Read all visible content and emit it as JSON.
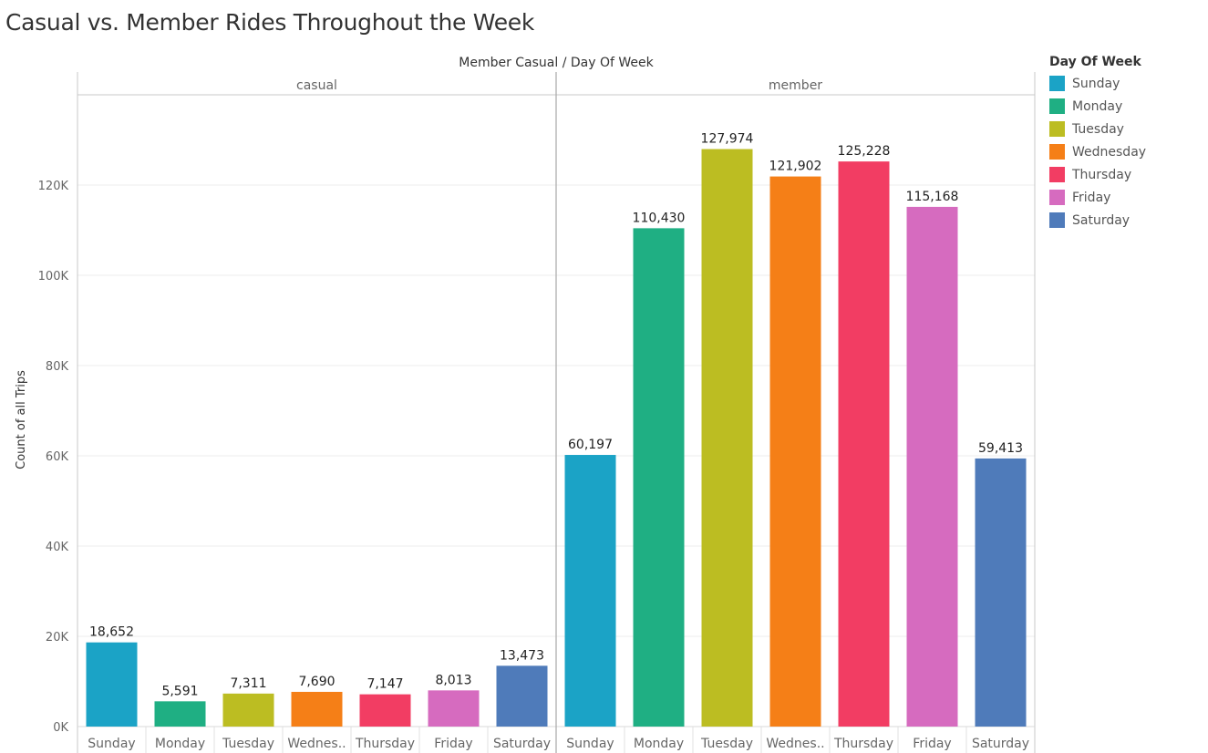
{
  "title": "Casual vs. Member Rides Throughout the Week",
  "chart_data": {
    "type": "bar",
    "title": "Casual vs. Member Rides Throughout the Week",
    "column_header": "Member Casual  /  Day Of Week",
    "ylabel": "Count of all Trips",
    "ylim": [
      0,
      140000
    ],
    "y_ticks": [
      0,
      20000,
      40000,
      60000,
      80000,
      100000,
      120000
    ],
    "y_tick_labels": [
      "0K",
      "20K",
      "40K",
      "60K",
      "80K",
      "100K",
      "120K"
    ],
    "grid": true,
    "legend_position": "right",
    "categories": [
      "Sunday",
      "Monday",
      "Tuesday",
      "Wedneѕ..",
      "Thursday",
      "Friday",
      "Saturday"
    ],
    "panels": [
      {
        "name": "casual",
        "values": [
          18652,
          5591,
          7311,
          7690,
          7147,
          8013,
          13473
        ],
        "value_labels": [
          "18,652",
          "5,591",
          "7,311",
          "7,690",
          "7,147",
          "8,013",
          "13,473"
        ]
      },
      {
        "name": "member",
        "values": [
          60197,
          110430,
          127974,
          121902,
          125228,
          115168,
          59413
        ],
        "value_labels": [
          "60,197",
          "110,430",
          "127,974",
          "121,902",
          "125,228",
          "115,168",
          "59,413"
        ]
      }
    ],
    "legend": {
      "title": "Day Of Week",
      "items": [
        {
          "label": "Sunday",
          "color": "#1BA3C6"
        },
        {
          "label": "Monday",
          "color": "#1FAF83"
        },
        {
          "label": "Tuesday",
          "color": "#BCBD22"
        },
        {
          "label": "Wednesday",
          "color": "#F57F17"
        },
        {
          "label": "Thursday",
          "color": "#F23D63"
        },
        {
          "label": "Friday",
          "color": "#D66BBF"
        },
        {
          "label": "Saturday",
          "color": "#4F7BBA"
        }
      ]
    }
  }
}
